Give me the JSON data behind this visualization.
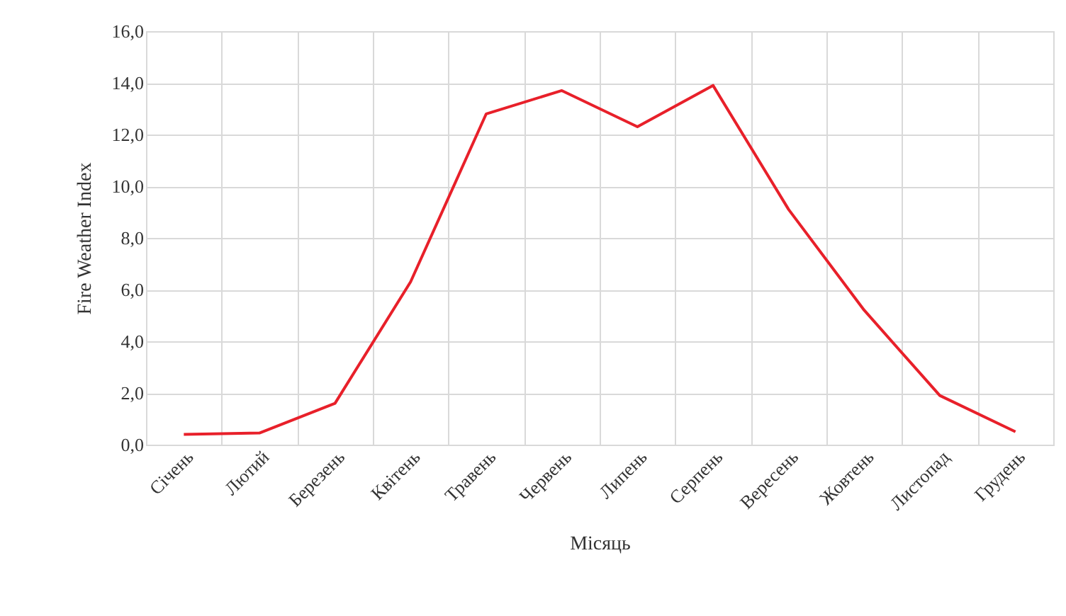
{
  "chart_data": {
    "type": "line",
    "xlabel": "Місяць",
    "ylabel": "Fire Weather Index",
    "categories": [
      "Січень",
      "Лютий",
      "Березень",
      "Квітень",
      "Травень",
      "Червень",
      "Липень",
      "Серпень",
      "Вересень",
      "Жовтень",
      "Листопад",
      "Грудень"
    ],
    "series": [
      {
        "color": "#e8202a",
        "values": [
          0.4,
          0.45,
          1.6,
          6.3,
          12.8,
          13.7,
          12.3,
          13.9,
          9.1,
          5.2,
          1.9,
          0.5
        ]
      }
    ],
    "ylim": [
      0,
      16
    ],
    "yticks": [
      {
        "value": 0,
        "label": "0,0"
      },
      {
        "value": 2,
        "label": "2,0"
      },
      {
        "value": 4,
        "label": "4,0"
      },
      {
        "value": 6,
        "label": "6,0"
      },
      {
        "value": 8,
        "label": "8,0"
      },
      {
        "value": 10,
        "label": "10,0"
      },
      {
        "value": 12,
        "label": "12,0"
      },
      {
        "value": 14,
        "label": "14,0"
      },
      {
        "value": 16,
        "label": "16,0"
      }
    ],
    "grid": true
  }
}
